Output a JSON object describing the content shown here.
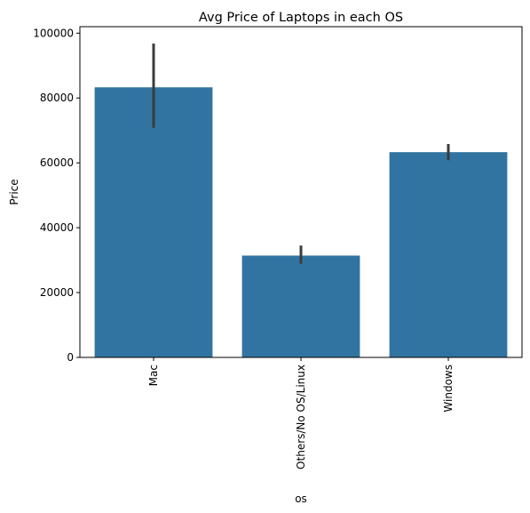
{
  "chart_data": {
    "type": "bar",
    "title": "Avg Price of Laptops in each OS",
    "xlabel": "os",
    "ylabel": "Price",
    "categories": [
      "Mac",
      "Others/No OS/Linux",
      "Windows"
    ],
    "values": [
      83300,
      31400,
      63300
    ],
    "error_bars": [
      {
        "low": 70800,
        "high": 96800
      },
      {
        "low": 28900,
        "high": 34500
      },
      {
        "low": 60800,
        "high": 65800
      }
    ],
    "ylim": [
      0,
      102000
    ],
    "yticks": [
      0,
      20000,
      40000,
      60000,
      80000,
      100000
    ],
    "ytick_labels": [
      "0",
      "20000",
      "40000",
      "60000",
      "80000",
      "100000"
    ],
    "grid": false,
    "xtick_rotation": "vertical",
    "bar_color": "#3274a1",
    "errbar_color": "#3b3b3b"
  }
}
